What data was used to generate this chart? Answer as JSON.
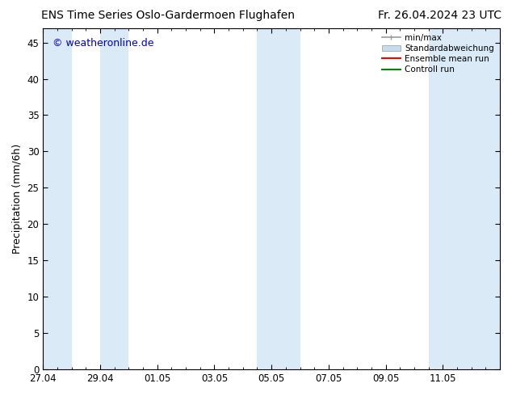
{
  "title_left": "ENS Time Series Oslo-Gardermoen Flughafen",
  "title_right": "Fr. 26.04.2024 23 UTC",
  "ylabel": "Precipitation (mm/6h)",
  "watermark": "© weatheronline.de",
  "watermark_color": "#0000cc",
  "background_color": "#ffffff",
  "plot_bg_color": "#ffffff",
  "ylim": [
    0,
    47
  ],
  "yticks": [
    0,
    5,
    10,
    15,
    20,
    25,
    30,
    35,
    40,
    45
  ],
  "xlim": [
    0,
    16
  ],
  "xtick_labels": [
    "27.04",
    "29.04",
    "01.05",
    "03.05",
    "05.05",
    "07.05",
    "09.05",
    "11.05"
  ],
  "xtick_positions": [
    0,
    2,
    4,
    6,
    8,
    10,
    12,
    14
  ],
  "shaded_bands": [
    {
      "x_start": 0.0,
      "x_end": 1.0
    },
    {
      "x_start": 2.0,
      "x_end": 3.0
    },
    {
      "x_start": 7.5,
      "x_end": 9.0
    },
    {
      "x_start": 13.5,
      "x_end": 16.0
    }
  ],
  "band_color": "#daeaf7",
  "legend_entries": [
    {
      "label": "min/max",
      "color": "#999999",
      "lw": 1.2,
      "style": "minmax"
    },
    {
      "label": "Standardabweichung",
      "color": "#c5ddf0",
      "lw": 8,
      "style": "band"
    },
    {
      "label": "Ensemble mean run",
      "color": "#ff0000",
      "lw": 1.5,
      "style": "line"
    },
    {
      "label": "Controll run",
      "color": "#008800",
      "lw": 1.5,
      "style": "line"
    }
  ],
  "title_fontsize": 10,
  "axis_fontsize": 9,
  "tick_fontsize": 8.5,
  "watermark_fontsize": 9,
  "legend_fontsize": 7.5
}
